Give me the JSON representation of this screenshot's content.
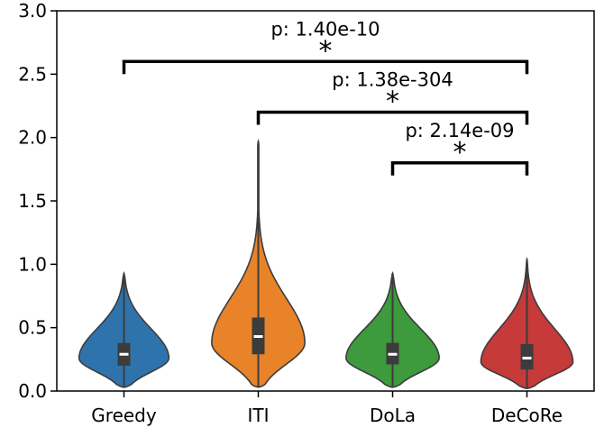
{
  "chart_data": {
    "type": "violin",
    "categories": [
      "Greedy",
      "ITI",
      "DoLa",
      "DeCoRe"
    ],
    "ylim": [
      0.0,
      3.0
    ],
    "yticks": [
      "0.0",
      "0.5",
      "1.0",
      "1.5",
      "2.0",
      "2.5",
      "3.0"
    ],
    "series": [
      {
        "category": "Greedy",
        "color": "#2f73ad",
        "min": 0.03,
        "q1": 0.2,
        "median": 0.29,
        "q3": 0.38,
        "max": 0.93,
        "mode": 0.26,
        "width_peak": 0.83
      },
      {
        "category": "ITI",
        "color": "#e8832a",
        "min": 0.03,
        "q1": 0.29,
        "median": 0.43,
        "q3": 0.58,
        "max": 1.97,
        "mode": 0.38,
        "width_peak": 0.86
      },
      {
        "category": "DoLa",
        "color": "#3d9a3d",
        "min": 0.03,
        "q1": 0.21,
        "median": 0.29,
        "q3": 0.38,
        "max": 0.93,
        "mode": 0.26,
        "width_peak": 0.86
      },
      {
        "category": "DeCoRe",
        "color": "#c63a3a",
        "min": 0.02,
        "q1": 0.17,
        "median": 0.26,
        "q3": 0.37,
        "max": 1.04,
        "mode": 0.23,
        "width_peak": 0.85
      }
    ],
    "annotations": [
      {
        "from": "Greedy",
        "to": "DeCoRe",
        "y": 2.6,
        "label": "p: 1.40e-10",
        "marker": "*"
      },
      {
        "from": "ITI",
        "to": "DeCoRe",
        "y": 2.2,
        "label": "p: 1.38e-304",
        "marker": "*"
      },
      {
        "from": "DoLa",
        "to": "DeCoRe",
        "y": 1.8,
        "label": "p: 2.14e-09",
        "marker": "*"
      }
    ]
  }
}
